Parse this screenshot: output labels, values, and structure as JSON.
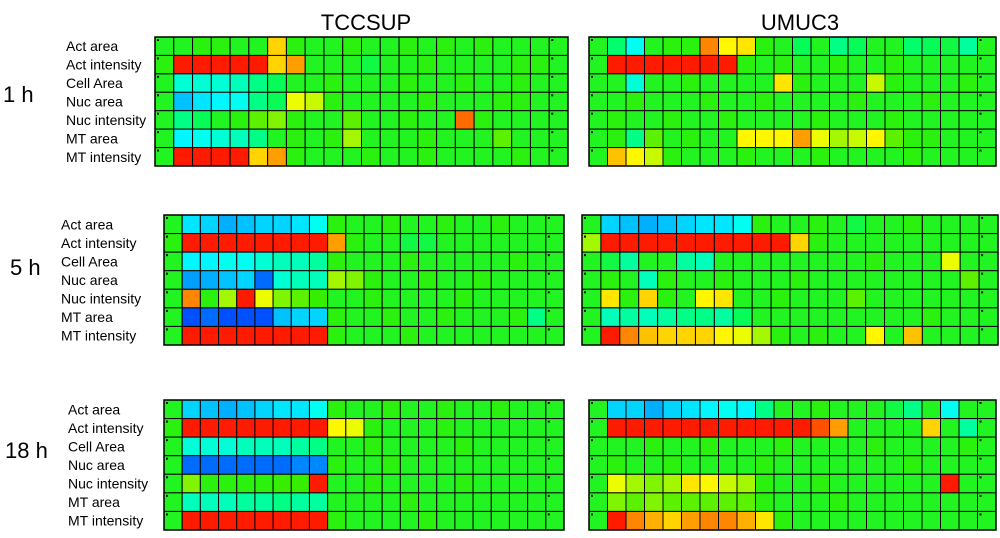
{
  "chart_data": {
    "type": "heatmap",
    "columns": [
      "TCCSUP",
      "UMUC3"
    ],
    "row_labels": [
      "Act area",
      "Act intensity",
      "Cell Area",
      "Nuc area",
      "Nuc intensity",
      "MT area",
      "MT intensity"
    ],
    "timepoints": [
      "1 h",
      "5 h",
      "18 h"
    ],
    "value_range": [
      -1,
      1
    ],
    "colormap": [
      "#0000ff",
      "#0099ff",
      "#00ffff",
      "#00ff66",
      "#33ee00",
      "#ffff00",
      "#ff9900",
      "#ff0000"
    ],
    "panels": [
      {
        "time": "1 h",
        "cell_line": "TCCSUP",
        "values": [
          [
            0.05,
            0.05,
            0.1,
            0.1,
            0.05,
            0.05,
            0.55,
            0.1,
            0.05,
            0.05,
            0.1,
            0.05,
            0.05,
            0.1,
            0.05,
            0.1,
            0.05,
            0.1,
            0.05,
            0.05,
            0.05,
            0.05
          ],
          [
            0.1,
            0.95,
            0.95,
            0.95,
            0.95,
            0.95,
            0.55,
            0.7,
            0.05,
            0.05,
            0.05,
            -0.05,
            0.05,
            0.05,
            0.1,
            0.05,
            0.05,
            0.05,
            0.05,
            0.1,
            0.1,
            0.05
          ],
          [
            0.05,
            -0.35,
            -0.35,
            -0.35,
            -0.3,
            -0.2,
            -0.1,
            0.05,
            0.05,
            0.1,
            0.05,
            0.05,
            0.05,
            0.1,
            0.05,
            0.05,
            0.1,
            0.05,
            0.05,
            0.1,
            0.05,
            0.05
          ],
          [
            0.05,
            -0.6,
            -0.5,
            -0.45,
            -0.4,
            -0.2,
            -0.1,
            0.4,
            0.35,
            0.1,
            0.05,
            0.05,
            0.05,
            0.05,
            0.1,
            0.05,
            0.05,
            0.05,
            0.1,
            0.1,
            0.05,
            0.05
          ],
          [
            0.05,
            -0.2,
            -0.1,
            0.05,
            0.1,
            0.2,
            0.25,
            0.1,
            0.05,
            0.05,
            0.2,
            0.05,
            0.05,
            0.1,
            0.05,
            0.05,
            0.8,
            0.1,
            0.05,
            0.05,
            0.05,
            0.05
          ],
          [
            0.05,
            -0.45,
            -0.4,
            -0.35,
            -0.3,
            -0.2,
            0.05,
            0.1,
            0.05,
            0.1,
            0.3,
            0.05,
            0.05,
            0.05,
            0.1,
            0.05,
            0.05,
            0.05,
            0.2,
            0.05,
            0.05,
            0.05
          ],
          [
            0.05,
            0.95,
            0.95,
            0.95,
            0.95,
            0.55,
            0.7,
            0.1,
            0.05,
            0.05,
            0.05,
            0.1,
            0.05,
            0.05,
            0.1,
            0.05,
            0.05,
            0.05,
            0.05,
            0.1,
            0.05,
            0.05
          ]
        ]
      },
      {
        "time": "1 h",
        "cell_line": "UMUC3",
        "values": [
          [
            0.05,
            -0.15,
            -0.4,
            0.05,
            0.1,
            0.1,
            0.75,
            0.45,
            0.5,
            0.1,
            0.05,
            -0.1,
            0.05,
            -0.2,
            -0.1,
            0.05,
            0.05,
            -0.15,
            -0.1,
            -0.05,
            -0.25,
            0.05
          ],
          [
            0.05,
            0.95,
            0.95,
            0.95,
            0.95,
            0.95,
            0.95,
            0.95,
            0.1,
            0.05,
            0.1,
            0.05,
            0.05,
            0.1,
            0.05,
            0.05,
            0.1,
            0.05,
            0.05,
            0.05,
            0.05,
            0.05
          ],
          [
            0.05,
            0.05,
            -0.35,
            0.05,
            0.05,
            0.1,
            0.05,
            0.05,
            0.05,
            0.05,
            0.5,
            0.1,
            0.05,
            0.05,
            0.05,
            0.35,
            0.1,
            0.05,
            0.05,
            0.05,
            0.1,
            0.05
          ],
          [
            0.05,
            0.05,
            0.1,
            0.05,
            0.05,
            0.05,
            0.1,
            0.05,
            0.05,
            0.1,
            0.05,
            0.05,
            0.05,
            0.05,
            0.1,
            0.05,
            0.05,
            0.05,
            0.1,
            0.05,
            0.05,
            0.05
          ],
          [
            0.05,
            0.1,
            0.05,
            0.05,
            0.1,
            0.05,
            0.05,
            0.1,
            0.05,
            0.05,
            0.05,
            0.05,
            0.1,
            0.05,
            0.05,
            0.05,
            0.1,
            0.05,
            0.05,
            0.05,
            0.05,
            0.05
          ],
          [
            0.05,
            0.1,
            -0.2,
            0.2,
            0.05,
            0.1,
            0.05,
            0.05,
            0.45,
            0.45,
            0.45,
            0.7,
            0.4,
            0.3,
            0.35,
            0.45,
            0.2,
            0.1,
            0.1,
            0.05,
            0.05,
            0.05
          ],
          [
            0.05,
            0.6,
            0.45,
            0.35,
            0.1,
            0.05,
            0.05,
            0.05,
            0.1,
            0.05,
            0.05,
            0.05,
            0.1,
            0.05,
            0.05,
            0.05,
            0.05,
            0.1,
            0.05,
            0.05,
            0.05,
            0.05
          ]
        ]
      },
      {
        "time": "5 h",
        "cell_line": "TCCSUP",
        "values": [
          [
            0.05,
            -0.5,
            -0.55,
            -0.65,
            -0.6,
            -0.55,
            -0.55,
            -0.5,
            -0.4,
            0.1,
            0.05,
            0.05,
            0.1,
            0.05,
            0.05,
            0.1,
            0.05,
            0.05,
            0.1,
            0.05,
            0.05,
            0.05
          ],
          [
            0.1,
            0.95,
            0.95,
            0.95,
            0.95,
            0.95,
            0.95,
            0.95,
            0.95,
            0.7,
            0.1,
            0.05,
            0.05,
            -0.05,
            -0.05,
            0.05,
            0.05,
            0.05,
            0.05,
            0.05,
            0.05,
            0.05
          ],
          [
            0.05,
            -0.45,
            -0.45,
            -0.4,
            -0.4,
            -0.35,
            -0.3,
            -0.3,
            -0.25,
            0.1,
            0.05,
            0.05,
            0.05,
            0.1,
            0.05,
            0.05,
            0.05,
            0.05,
            0.05,
            0.1,
            0.05,
            0.05
          ],
          [
            0.05,
            -0.7,
            -0.65,
            -0.6,
            -0.55,
            -0.8,
            -0.35,
            -0.3,
            -0.3,
            0.3,
            0.25,
            0.1,
            0.05,
            0.05,
            0.1,
            0.05,
            0.05,
            0.1,
            0.05,
            0.05,
            0.05,
            0.05
          ],
          [
            0.05,
            0.75,
            0.1,
            0.3,
            0.95,
            0.4,
            0.25,
            0.2,
            0.15,
            0.05,
            0.05,
            0.1,
            0.05,
            0.05,
            0.05,
            0.05,
            0.1,
            0.05,
            0.05,
            0.05,
            0.05,
            0.05
          ],
          [
            0.05,
            -0.85,
            -0.8,
            -0.85,
            -0.85,
            -0.85,
            -0.6,
            -0.55,
            -0.55,
            0.1,
            0.05,
            0.05,
            0.1,
            0.05,
            0.05,
            0.1,
            0.05,
            0.05,
            0.05,
            0.1,
            -0.2,
            0.05
          ],
          [
            0.05,
            0.95,
            0.95,
            0.95,
            0.95,
            0.95,
            0.95,
            0.95,
            0.95,
            0.1,
            0.05,
            0.05,
            0.05,
            0.1,
            0.05,
            0.05,
            0.05,
            0.05,
            0.05,
            0.05,
            0.05,
            0.05
          ]
        ]
      },
      {
        "time": "5 h",
        "cell_line": "UMUC3",
        "values": [
          [
            0.05,
            -0.55,
            -0.6,
            -0.65,
            -0.6,
            -0.55,
            -0.5,
            -0.5,
            -0.4,
            0.1,
            0.05,
            0.05,
            0.1,
            0.05,
            -0.05,
            0.05,
            0.05,
            0.1,
            0.05,
            0.05,
            0.05,
            0.05
          ],
          [
            0.3,
            0.95,
            0.95,
            0.95,
            0.95,
            0.95,
            0.95,
            0.95,
            0.95,
            0.95,
            0.95,
            0.55,
            0.1,
            0.05,
            0.05,
            0.05,
            0.05,
            0.05,
            0.05,
            0.05,
            0.05,
            0.05
          ],
          [
            0.05,
            -0.05,
            -0.25,
            0.05,
            0.05,
            -0.25,
            -0.3,
            0.05,
            0.05,
            0.05,
            0.05,
            0.05,
            0.05,
            0.05,
            0.05,
            0.1,
            0.05,
            0.05,
            0.05,
            0.4,
            0.05,
            0.05
          ],
          [
            0.05,
            0.1,
            0.05,
            -0.3,
            0.1,
            0.05,
            0.05,
            0.1,
            0.05,
            0.05,
            0.05,
            0.1,
            0.05,
            0.05,
            0.05,
            0.05,
            0.05,
            0.05,
            0.05,
            0.05,
            0.2,
            0.05
          ],
          [
            0.05,
            0.5,
            0.1,
            0.55,
            0.1,
            0.05,
            0.45,
            0.5,
            0.05,
            0.05,
            0.1,
            0.05,
            0.05,
            0.05,
            0.2,
            0.05,
            0.05,
            0.05,
            0.05,
            0.05,
            0.05,
            0.05
          ],
          [
            0.05,
            -0.3,
            -0.25,
            -0.3,
            -0.25,
            -0.2,
            -0.2,
            -0.25,
            -0.1,
            0.05,
            0.05,
            0.05,
            0.05,
            0.05,
            0.05,
            0.05,
            0.05,
            0.05,
            0.1,
            0.05,
            0.05,
            0.05
          ],
          [
            0.05,
            0.95,
            0.75,
            0.6,
            0.55,
            0.55,
            0.55,
            0.45,
            0.4,
            0.3,
            0.1,
            0.05,
            0.1,
            0.05,
            0.05,
            0.45,
            0.05,
            0.6,
            0.05,
            0.05,
            0.05,
            0.05
          ]
        ]
      },
      {
        "time": "18 h",
        "cell_line": "TCCSUP",
        "values": [
          [
            0.05,
            -0.55,
            -0.6,
            -0.65,
            -0.6,
            -0.55,
            -0.5,
            -0.5,
            -0.4,
            0.1,
            0.05,
            0.05,
            0.1,
            0.05,
            0.05,
            0.1,
            0.05,
            0.05,
            0.1,
            0.05,
            0.05,
            0.05
          ],
          [
            0.1,
            0.95,
            0.95,
            0.95,
            0.95,
            0.95,
            0.95,
            0.95,
            0.95,
            0.45,
            0.4,
            0.1,
            0.05,
            0.05,
            0.05,
            0.1,
            0.05,
            0.05,
            0.05,
            0.05,
            0.05,
            0.05
          ],
          [
            0.05,
            -0.35,
            -0.35,
            -0.35,
            -0.3,
            -0.3,
            -0.3,
            -0.25,
            -0.2,
            0.05,
            0.05,
            0.1,
            0.05,
            0.05,
            0.05,
            0.05,
            0.1,
            0.05,
            0.05,
            0.05,
            0.05,
            0.05
          ],
          [
            0.05,
            -0.8,
            -0.8,
            -0.8,
            -0.8,
            -0.8,
            -0.8,
            -0.75,
            -0.75,
            0.1,
            0.05,
            0.05,
            0.1,
            0.05,
            0.05,
            0.05,
            0.05,
            0.05,
            0.05,
            0.05,
            0.05,
            0.05
          ],
          [
            0.05,
            0.25,
            0.1,
            0.1,
            0.1,
            0.1,
            0.15,
            0.15,
            0.95,
            0.05,
            0.05,
            0.1,
            0.05,
            0.05,
            0.05,
            0.05,
            0.1,
            0.05,
            0.05,
            0.05,
            0.05,
            0.05
          ],
          [
            0.05,
            -0.3,
            -0.3,
            -0.3,
            -0.25,
            -0.25,
            -0.2,
            -0.25,
            -0.25,
            0.05,
            0.05,
            0.05,
            0.05,
            0.1,
            0.05,
            0.05,
            0.05,
            0.05,
            0.05,
            0.05,
            0.05,
            0.05
          ],
          [
            0.05,
            0.95,
            0.95,
            0.95,
            0.95,
            0.95,
            0.95,
            0.95,
            0.95,
            0.1,
            0.05,
            0.05,
            0.05,
            0.05,
            0.1,
            0.05,
            0.05,
            0.05,
            0.05,
            0.05,
            0.05,
            0.05
          ]
        ]
      },
      {
        "time": "18 h",
        "cell_line": "UMUC3",
        "values": [
          [
            0.05,
            -0.55,
            -0.55,
            -0.65,
            -0.55,
            -0.5,
            -0.45,
            -0.4,
            -0.45,
            -0.2,
            0.05,
            0.05,
            0.1,
            0.05,
            0.05,
            0.05,
            -0.05,
            -0.2,
            0.05,
            -0.4,
            0.05,
            0.05
          ],
          [
            0.05,
            0.95,
            0.95,
            0.95,
            0.95,
            0.95,
            0.95,
            0.95,
            0.95,
            0.95,
            0.95,
            0.95,
            0.85,
            0.7,
            0.05,
            0.05,
            0.05,
            0.05,
            0.55,
            0.05,
            -0.25,
            0.05
          ],
          [
            0.05,
            0.05,
            0.05,
            0.1,
            0.05,
            0.05,
            0.1,
            0.05,
            0.05,
            0.05,
            0.1,
            0.05,
            0.05,
            0.05,
            0.05,
            0.1,
            0.05,
            0.05,
            0.05,
            0.05,
            0.1,
            0.05
          ],
          [
            0.05,
            0.1,
            0.05,
            0.05,
            0.1,
            0.05,
            0.05,
            0.05,
            0.05,
            0.1,
            0.05,
            0.05,
            0.05,
            0.05,
            0.05,
            0.05,
            0.05,
            0.1,
            0.05,
            0.05,
            0.05,
            0.05
          ],
          [
            0.05,
            0.4,
            0.3,
            0.25,
            0.3,
            0.5,
            0.45,
            0.35,
            0.3,
            0.1,
            0.05,
            0.05,
            0.1,
            0.05,
            0.05,
            0.05,
            0.05,
            0.05,
            0.05,
            0.95,
            0.05,
            0.05
          ],
          [
            0.05,
            0.25,
            0.2,
            0.25,
            0.2,
            0.2,
            0.2,
            0.2,
            0.2,
            0.1,
            0.05,
            0.05,
            0.05,
            0.1,
            0.05,
            0.05,
            0.05,
            0.05,
            0.05,
            0.05,
            0.05,
            0.05
          ],
          [
            0.05,
            0.95,
            0.75,
            0.65,
            0.55,
            0.7,
            0.75,
            0.75,
            0.65,
            0.5,
            0.1,
            0.05,
            0.05,
            0.05,
            0.05,
            0.05,
            0.05,
            0.05,
            0.05,
            0.05,
            0.05,
            0.05
          ]
        ]
      }
    ]
  }
}
